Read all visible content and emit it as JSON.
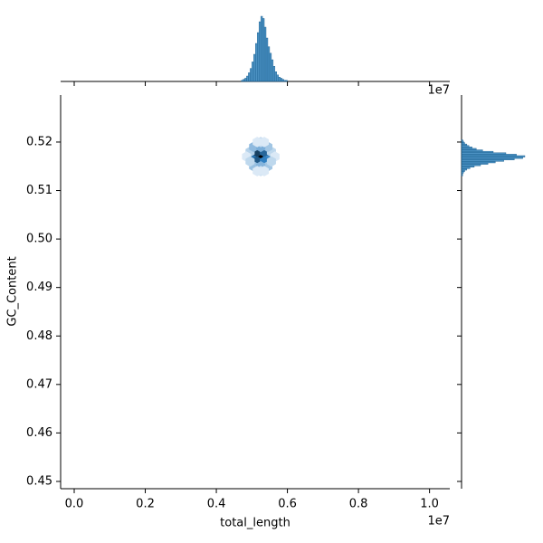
{
  "chart_data": {
    "type": "hexbin",
    "x_label": "total_length",
    "y_label": "GC_Content",
    "x_offset_label": "1e7",
    "xlim": [
      -382000,
      10570000
    ],
    "ylim": [
      0.4485,
      0.5297
    ],
    "xticks": [
      {
        "value": 0,
        "label": "0.0"
      },
      {
        "value": 2000000,
        "label": "0.2"
      },
      {
        "value": 4000000,
        "label": "0.4"
      },
      {
        "value": 6000000,
        "label": "0.6"
      },
      {
        "value": 8000000,
        "label": "0.8"
      },
      {
        "value": 10000000,
        "label": "1.0"
      }
    ],
    "yticks": [
      0.45,
      0.46,
      0.47,
      0.48,
      0.49,
      {
        "value": 0.5,
        "label": "0.50"
      },
      0.51,
      0.52
    ],
    "cmap": [
      "#eef5fc",
      "#2f7fc1",
      "#000000"
    ],
    "cells": {
      "x": [
        5250000,
        5050000,
        5450000,
        5150000,
        5350000,
        5150000,
        5350000,
        4950000,
        5550000,
        5050000,
        5450000,
        5050000,
        5450000,
        5250000,
        5250000,
        4850000,
        5650000,
        5250000,
        5250000,
        4950000,
        5550000,
        5150000,
        5350000,
        5150000,
        5350000
      ],
      "y": [
        0.517,
        0.517,
        0.517,
        0.518,
        0.518,
        0.516,
        0.516,
        0.518,
        0.518,
        0.519,
        0.519,
        0.515,
        0.515,
        0.519,
        0.515,
        0.517,
        0.517,
        0.52,
        0.514,
        0.516,
        0.516,
        0.514,
        0.514,
        0.52,
        0.52
      ],
      "counts": [
        40,
        22,
        18,
        30,
        24,
        26,
        20,
        6,
        5,
        10,
        8,
        9,
        8,
        12,
        11,
        2,
        2,
        4,
        3,
        5,
        5,
        2,
        2,
        2,
        2
      ]
    },
    "x_hist": {
      "color": "#1f77b4",
      "bins": [
        4700000,
        4750000,
        4800000,
        4850000,
        4900000,
        4950000,
        5000000,
        5050000,
        5100000,
        5150000,
        5200000,
        5250000,
        5300000,
        5350000,
        5400000,
        5450000,
        5500000,
        5550000,
        5600000,
        5650000,
        5700000,
        5750000,
        5800000,
        5850000,
        5900000,
        5950000,
        6000000
      ],
      "counts": [
        1,
        2,
        3,
        5,
        8,
        12,
        18,
        25,
        35,
        45,
        55,
        60,
        58,
        50,
        40,
        32,
        26,
        20,
        14,
        9,
        6,
        4,
        3,
        2,
        1,
        1
      ]
    },
    "y_hist": {
      "color": "#1f77b4",
      "bins": [
        0.513,
        0.5133,
        0.5136,
        0.5139,
        0.5142,
        0.5145,
        0.5148,
        0.5151,
        0.5154,
        0.5157,
        0.516,
        0.5163,
        0.5166,
        0.5169,
        0.5172,
        0.5175,
        0.5178,
        0.5181,
        0.5184,
        0.5187,
        0.519,
        0.5193,
        0.5196,
        0.5199,
        0.5202,
        0.5205
      ],
      "counts": [
        1,
        1,
        2,
        3,
        5,
        8,
        12,
        18,
        25,
        32,
        40,
        50,
        58,
        60,
        52,
        42,
        30,
        20,
        14,
        10,
        7,
        5,
        3,
        2,
        1
      ]
    }
  }
}
